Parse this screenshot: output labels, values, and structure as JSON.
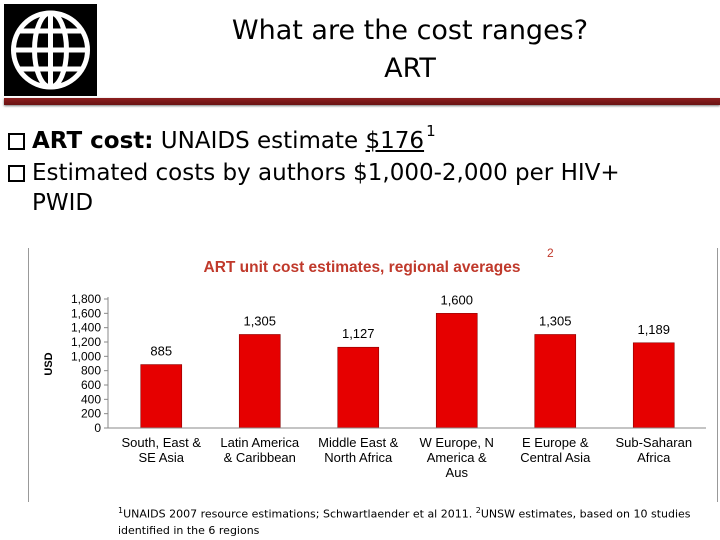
{
  "title": {
    "line1": "What are the cost ranges?",
    "line2": "ART"
  },
  "bullets": [
    {
      "bold": "ART cost:",
      "text": " UNAIDS estimate ",
      "value": "$176",
      "sup": "1"
    },
    {
      "text": "Estimated costs by authors $1,000-2,000 per HIV+",
      "text2": "PWID"
    }
  ],
  "chart_sup": "2",
  "footnote": {
    "sup1": "1",
    "part1": "UNAIDS 2007 resource estimations; Schwartlaender et al 2011.",
    "sup2": "2",
    "part2": "UNSW estimates, based on 10 studies",
    "line2": "identified in the 6 regions"
  },
  "colors": {
    "bar": "#e60000",
    "title": "#c0392b",
    "divider": "#7a1717"
  },
  "chart_data": {
    "type": "bar",
    "title": "ART unit cost estimates, regional averages",
    "ylabel": "USD",
    "xlabel": "",
    "categories": [
      [
        "South, East &",
        "SE Asia"
      ],
      [
        "Latin America",
        "& Caribbean"
      ],
      [
        "Middle East &",
        "North Africa"
      ],
      [
        "W Europe, N",
        "America &",
        "Aus"
      ],
      [
        "E Europe &",
        "Central Asia"
      ],
      [
        "Sub-Saharan",
        "Africa"
      ]
    ],
    "values": [
      885,
      1305,
      1127,
      1600,
      1305,
      1189
    ],
    "data_labels": [
      "885",
      "1,305",
      "1,127",
      "1,600",
      "1,305",
      "1,189"
    ],
    "yticks": [
      "0",
      "200",
      "400",
      "600",
      "800",
      "1,000",
      "1,200",
      "1,400",
      "1,600",
      "1,800"
    ],
    "ylim": [
      0,
      1800
    ],
    "grid": false,
    "legend": "none"
  }
}
